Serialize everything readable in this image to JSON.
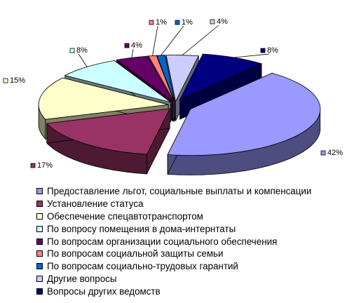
{
  "chart_data": {
    "type": "pie",
    "style": "3d-exploded",
    "title": "",
    "slices": [
      {
        "label": "Предоставление льгот, социальные выплаты и компенсации",
        "value": 42,
        "value_label": "42%",
        "color": "#9999ff",
        "side_color": "#4d4d80"
      },
      {
        "label": "Установление статуса",
        "value": 17,
        "value_label": "17%",
        "color": "#993366",
        "side_color": "#4d1933"
      },
      {
        "label": "Обеспечение спецавтотранспортом",
        "value": 15,
        "value_label": "15%",
        "color": "#ffffcc",
        "side_color": "#808066"
      },
      {
        "label": "По вопросу помещения в дома-интернтаты",
        "value": 8,
        "value_label": "8%",
        "color": "#ccffff",
        "side_color": "#668080"
      },
      {
        "label": "По вопросам организации социального обеспечения",
        "value": 4,
        "value_label": "4%",
        "color": "#660066",
        "side_color": "#330033"
      },
      {
        "label": "По вопросам социальной защиты семьи",
        "value": 1,
        "value_label": "1%",
        "color": "#ff8080",
        "side_color": "#804040"
      },
      {
        "label": "По вопросам социально-трудовых гарантий",
        "value": 1,
        "value_label": "1%",
        "color": "#0066cc",
        "side_color": "#003366"
      },
      {
        "label": "Другие вопросы",
        "value": 4,
        "value_label": "4%",
        "color": "#ccccff",
        "side_color": "#666680"
      },
      {
        "label": "Вопросы других ведомств",
        "value": 8,
        "value_label": "8%",
        "color": "#000080",
        "side_color": "#000040"
      }
    ],
    "legend": {
      "position": "bottom"
    }
  }
}
